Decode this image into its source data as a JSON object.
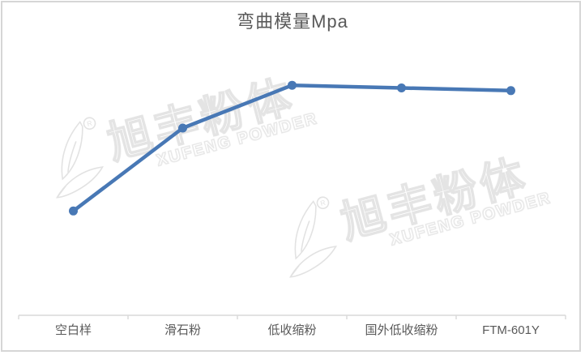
{
  "chart_data": {
    "type": "line",
    "title": "弯曲模量Mpa",
    "categories": [
      "空白样",
      "滑石粉",
      "低收缩粉",
      "国外低收缩粉",
      "FTM-601Y"
    ],
    "series": [
      {
        "name": "弯曲模量Mpa",
        "values": [
          0.39,
          0.7,
          0.86,
          0.85,
          0.84
        ]
      }
    ],
    "ylim": [
      0,
      1
    ],
    "y_axis_shown": false,
    "value_labels_shown": false,
    "gridlines": false,
    "legend": "none",
    "line_color": "#4878B5",
    "axis_color": "#D9D9D9",
    "text_color": "#595959"
  },
  "watermark": {
    "text_cn": "旭丰粉体",
    "text_en": "XUFENG POWDER",
    "registered_mark": "®",
    "count": 2
  }
}
